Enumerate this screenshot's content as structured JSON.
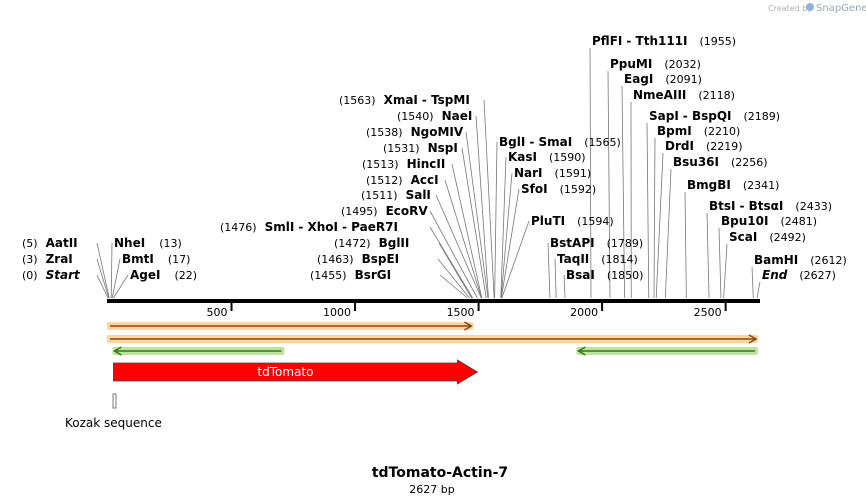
{
  "header": {
    "created_by": "Created by",
    "brand_name": "SnapGene"
  },
  "map": {
    "title": "tdTomato-Actin-7",
    "length_label": "2627 bp",
    "total_bp": 2627,
    "ticks": [
      500,
      1000,
      1500,
      2000,
      2500
    ],
    "colors": {
      "backbone": "#000000",
      "feature_red": "#ff0000",
      "primer_orange": "#f5a623",
      "primer_green": "#6fbf2a",
      "marker": "#777777"
    }
  },
  "features": [
    {
      "name": "tdTomato",
      "start": 22,
      "end": 1455,
      "color": "#ff0000",
      "direction": "forward"
    },
    {
      "name": "Kozak sequence",
      "start": 11,
      "end": 20,
      "color": "#777777"
    }
  ],
  "primers": [
    {
      "start": 0,
      "end": 1475,
      "direction": "forward",
      "color": "#f5a623"
    },
    {
      "start": 0,
      "end": 2627,
      "direction": "forward",
      "color": "#f5a623"
    },
    {
      "start": 22,
      "end": 710,
      "direction": "reverse",
      "color": "#6fbf2a"
    },
    {
      "start": 1900,
      "end": 2627,
      "direction": "reverse",
      "color": "#6fbf2a"
    }
  ],
  "left_sites": [
    {
      "names": [
        "Start"
      ],
      "pos": "(0)",
      "bp": 0,
      "italic": true
    },
    {
      "names": [
        "ZraI"
      ],
      "pos": "(3)",
      "bp": 3
    },
    {
      "names": [
        "AatII"
      ],
      "pos": "(5)",
      "bp": 5
    }
  ],
  "right_low_sites": [
    {
      "names": [
        "AgeI"
      ],
      "pos": "(22)",
      "bp": 22
    },
    {
      "names": [
        "BmtI"
      ],
      "pos": "(17)",
      "bp": 17
    },
    {
      "names": [
        "NheI"
      ],
      "pos": "(13)",
      "bp": 13
    }
  ],
  "middle_sites": [
    {
      "names": [
        "BsrGI"
      ],
      "pos": "(1455)",
      "bp": 1455
    },
    {
      "names": [
        "BspEI"
      ],
      "pos": "(1463)",
      "bp": 1463
    },
    {
      "names": [
        "BglII"
      ],
      "pos": "(1472)",
      "bp": 1472
    },
    {
      "names": [
        "SmlI",
        "XhoI",
        "PaeR7I"
      ],
      "pos": "(1476)",
      "bp": 1476
    },
    {
      "names": [
        "EcoRV"
      ],
      "pos": "(1495)",
      "bp": 1495
    },
    {
      "names": [
        "SalI"
      ],
      "pos": "(1511)",
      "bp": 1511
    },
    {
      "names": [
        "AccI"
      ],
      "pos": "(1512)",
      "bp": 1512
    },
    {
      "names": [
        "HincII"
      ],
      "pos": "(1513)",
      "bp": 1513
    },
    {
      "names": [
        "NspI"
      ],
      "pos": "(1531)",
      "bp": 1531
    },
    {
      "names": [
        "NgoMIV"
      ],
      "pos": "(1538)",
      "bp": 1538
    },
    {
      "names": [
        "NaeI"
      ],
      "pos": "(1540)",
      "bp": 1540
    },
    {
      "names": [
        "XmaI",
        "TspMI"
      ],
      "pos": "(1563)",
      "bp": 1563
    }
  ],
  "right_sites": [
    {
      "names": [
        "PluTI"
      ],
      "pos": "(1594)",
      "bp": 1594
    },
    {
      "names": [
        "SfoI"
      ],
      "pos": "(1592)",
      "bp": 1592
    },
    {
      "names": [
        "NarI"
      ],
      "pos": "(1591)",
      "bp": 1591
    },
    {
      "names": [
        "KasI"
      ],
      "pos": "(1590)",
      "bp": 1590
    },
    {
      "names": [
        "BglI",
        "SmaI"
      ],
      "pos": "(1565)",
      "bp": 1565
    }
  ],
  "far_right_low_sites": [
    {
      "names": [
        "BsaI"
      ],
      "pos": "(1850)",
      "bp": 1850
    },
    {
      "names": [
        "TaqII"
      ],
      "pos": "(1814)",
      "bp": 1814
    },
    {
      "names": [
        "BstAPI"
      ],
      "pos": "(1789)",
      "bp": 1789
    }
  ],
  "top_sites": [
    {
      "names": [
        "PflFI",
        "Tth111I"
      ],
      "pos": "(1955)",
      "bp": 1955
    },
    {
      "names": [
        "PpuMI"
      ],
      "pos": "(2032)",
      "bp": 2032
    },
    {
      "names": [
        "EagI"
      ],
      "pos": "(2091)",
      "bp": 2091
    },
    {
      "names": [
        "NmeAIII"
      ],
      "pos": "(2118)",
      "bp": 2118
    },
    {
      "names": [
        "SapI",
        "BspQI"
      ],
      "pos": "(2189)",
      "bp": 2189
    },
    {
      "names": [
        "BpmI"
      ],
      "pos": "(2210)",
      "bp": 2210
    },
    {
      "names": [
        "DrdI"
      ],
      "pos": "(2219)",
      "bp": 2219
    },
    {
      "names": [
        "Bsu36I"
      ],
      "pos": "(2256)",
      "bp": 2256
    },
    {
      "names": [
        "BmgBI"
      ],
      "pos": "(2341)",
      "bp": 2341
    },
    {
      "names": [
        "BtsI",
        "BtsαI"
      ],
      "pos": "(2433)",
      "bp": 2433
    },
    {
      "names": [
        "Bpu10I"
      ],
      "pos": "(2481)",
      "bp": 2481
    },
    {
      "names": [
        "ScaI"
      ],
      "pos": "(2492)",
      "bp": 2492
    },
    {
      "names": [
        "BamHI"
      ],
      "pos": "(2612)",
      "bp": 2612
    },
    {
      "names": [
        "End"
      ],
      "pos": "(2627)",
      "bp": 2627,
      "italic": true
    }
  ]
}
